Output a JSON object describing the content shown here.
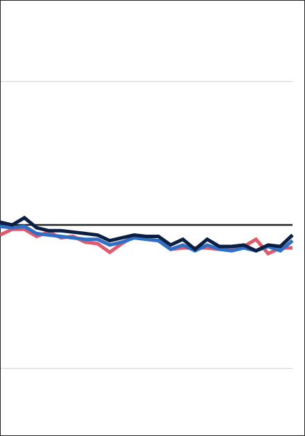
{
  "chart_data": {
    "type": "line",
    "title": "",
    "xlabel": "",
    "ylabel": "",
    "grid": true,
    "ylim": [
      -1.5,
      1.5
    ],
    "gridlines_y": [
      -1,
      0,
      1
    ],
    "reference_line": {
      "y": 0.0,
      "color": "#222222"
    },
    "x": [
      0,
      1,
      2,
      3,
      4,
      5,
      6,
      7,
      8,
      9,
      10,
      11,
      12,
      13,
      14,
      15,
      16,
      17,
      18,
      19,
      20,
      21,
      22,
      23,
      24
    ],
    "series": [
      {
        "color": "#0b1f45",
        "values": [
          0.02,
          0.0,
          0.05,
          -0.02,
          -0.04,
          -0.04,
          -0.05,
          -0.06,
          -0.07,
          -0.11,
          -0.09,
          -0.07,
          -0.08,
          -0.08,
          -0.14,
          -0.1,
          -0.17,
          -0.1,
          -0.15,
          -0.15,
          -0.14,
          -0.18,
          -0.14,
          -0.15,
          -0.07
        ]
      },
      {
        "color": "#2f6fc4",
        "values": [
          -0.01,
          -0.02,
          -0.01,
          -0.06,
          -0.07,
          -0.08,
          -0.09,
          -0.1,
          -0.1,
          -0.14,
          -0.12,
          -0.09,
          -0.1,
          -0.11,
          -0.17,
          -0.14,
          -0.18,
          -0.14,
          -0.17,
          -0.18,
          -0.16,
          -0.18,
          -0.15,
          -0.18,
          -0.11
        ]
      },
      {
        "color": "#e05a6e",
        "values": [
          -0.07,
          -0.03,
          -0.03,
          -0.08,
          -0.05,
          -0.09,
          -0.08,
          -0.12,
          -0.13,
          -0.19,
          -0.13,
          -0.08,
          -0.1,
          -0.11,
          -0.17,
          -0.16,
          -0.16,
          -0.16,
          -0.17,
          -0.17,
          -0.15,
          -0.1,
          -0.2,
          -0.16,
          -0.16
        ]
      }
    ]
  }
}
